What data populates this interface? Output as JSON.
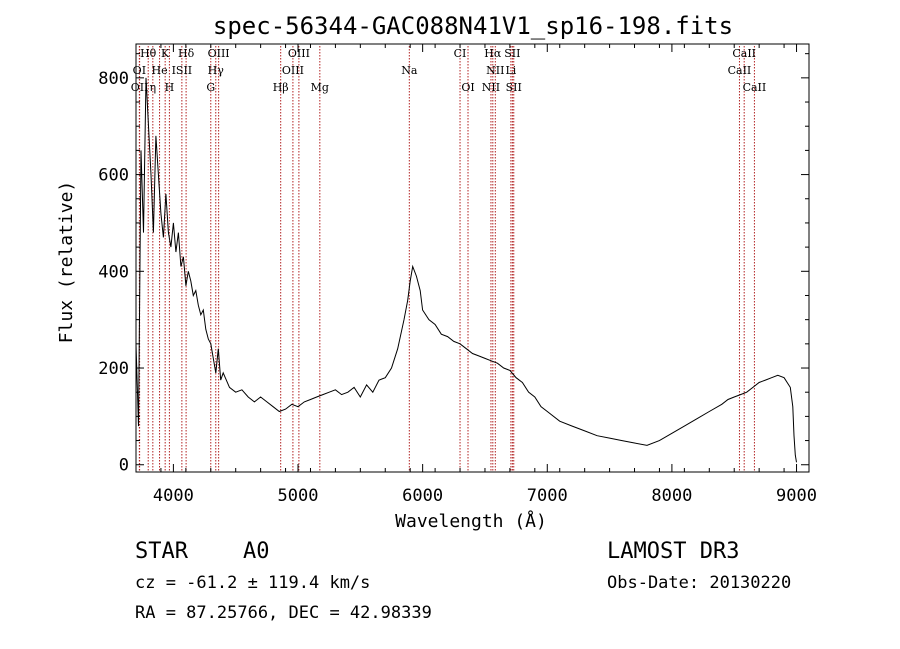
{
  "chart_data": {
    "type": "line",
    "title": "spec-56344-GAC088N41V1_sp16-198.fits",
    "xlabel": "Wavelength (Å)",
    "ylabel": "Flux (relative)",
    "xlim": [
      3700,
      9100
    ],
    "ylim": [
      -15,
      870
    ],
    "xticks": [
      4000,
      5000,
      6000,
      7000,
      8000,
      9000
    ],
    "yticks": [
      0,
      200,
      400,
      600,
      800
    ],
    "line_color": "#000000",
    "marker_color": "#b22222",
    "spectrum": {
      "name": "flux",
      "x": [
        3700,
        3720,
        3740,
        3760,
        3780,
        3800,
        3820,
        3840,
        3860,
        3880,
        3900,
        3920,
        3940,
        3960,
        3980,
        4000,
        4020,
        4040,
        4060,
        4080,
        4100,
        4120,
        4140,
        4160,
        4180,
        4200,
        4220,
        4240,
        4260,
        4280,
        4300,
        4320,
        4340,
        4360,
        4380,
        4400,
        4450,
        4500,
        4550,
        4600,
        4650,
        4700,
        4750,
        4800,
        4850,
        4900,
        4950,
        5000,
        5050,
        5100,
        5150,
        5200,
        5250,
        5300,
        5350,
        5400,
        5450,
        5500,
        5550,
        5600,
        5650,
        5700,
        5750,
        5800,
        5850,
        5880,
        5900,
        5920,
        5950,
        5980,
        6000,
        6050,
        6100,
        6150,
        6200,
        6250,
        6300,
        6350,
        6400,
        6450,
        6500,
        6550,
        6600,
        6650,
        6700,
        6750,
        6800,
        6850,
        6900,
        6950,
        7000,
        7100,
        7200,
        7300,
        7400,
        7500,
        7600,
        7700,
        7800,
        7900,
        8000,
        8100,
        8200,
        8300,
        8400,
        8450,
        8500,
        8550,
        8600,
        8650,
        8700,
        8750,
        8800,
        8850,
        8900,
        8950,
        8970,
        8980,
        8990,
        9000
      ],
      "y": [
        250,
        80,
        650,
        480,
        800,
        700,
        600,
        480,
        680,
        600,
        520,
        470,
        560,
        480,
        450,
        500,
        440,
        480,
        410,
        430,
        370,
        400,
        380,
        350,
        360,
        330,
        310,
        320,
        280,
        260,
        250,
        220,
        190,
        240,
        175,
        190,
        160,
        150,
        155,
        140,
        130,
        140,
        130,
        120,
        110,
        115,
        125,
        120,
        130,
        135,
        140,
        145,
        150,
        155,
        145,
        150,
        160,
        140,
        165,
        150,
        175,
        180,
        200,
        240,
        300,
        340,
        380,
        410,
        390,
        360,
        320,
        300,
        290,
        270,
        265,
        255,
        250,
        240,
        230,
        225,
        220,
        215,
        210,
        200,
        195,
        180,
        170,
        150,
        140,
        120,
        110,
        90,
        80,
        70,
        60,
        55,
        50,
        45,
        40,
        50,
        65,
        80,
        95,
        110,
        125,
        135,
        140,
        145,
        150,
        160,
        170,
        175,
        180,
        185,
        180,
        160,
        120,
        60,
        20,
        5
      ]
    },
    "lines": [
      {
        "label": "Hθ",
        "wl": 3798,
        "row": 0
      },
      {
        "label": "K",
        "wl": 3934,
        "row": 0
      },
      {
        "label": "Hδ",
        "wl": 4102,
        "row": 0
      },
      {
        "label": "OIII",
        "wl": 4363,
        "row": 0
      },
      {
        "label": "OIII",
        "wl": 5007,
        "row": 0
      },
      {
        "label": "CI",
        "wl": 6300,
        "row": 0
      },
      {
        "label": "Hα",
        "wl": 6563,
        "row": 0
      },
      {
        "label": "SII",
        "wl": 6720,
        "row": 0
      },
      {
        "label": "CaII",
        "wl": 8580,
        "row": 0
      },
      {
        "label": "OI",
        "wl": 3727,
        "row": 1
      },
      {
        "label": "He",
        "wl": 3889,
        "row": 1
      },
      {
        "label": "ISII",
        "wl": 4068,
        "row": 1
      },
      {
        "label": "Hγ",
        "wl": 4340,
        "row": 1
      },
      {
        "label": "OIII",
        "wl": 4959,
        "row": 1
      },
      {
        "label": "Na",
        "wl": 5893,
        "row": 1
      },
      {
        "label": "NII",
        "wl": 6583,
        "row": 1
      },
      {
        "label": "Li",
        "wl": 6708,
        "row": 1
      },
      {
        "label": "CaII",
        "wl": 8542,
        "row": 1
      },
      {
        "label": "OII",
        "wl": 3729,
        "row": 2
      },
      {
        "label": "η",
        "wl": 3835,
        "row": 2
      },
      {
        "label": "H",
        "wl": 3968,
        "row": 2
      },
      {
        "label": "G",
        "wl": 4300,
        "row": 2
      },
      {
        "label": "Hβ",
        "wl": 4861,
        "row": 2
      },
      {
        "label": "Mg",
        "wl": 5175,
        "row": 2
      },
      {
        "label": "OI",
        "wl": 6364,
        "row": 2
      },
      {
        "label": "NII",
        "wl": 6548,
        "row": 2
      },
      {
        "label": "SII",
        "wl": 6731,
        "row": 2
      },
      {
        "label": "CaII",
        "wl": 8662,
        "row": 2
      }
    ]
  },
  "info": {
    "object_class": "STAR",
    "subclass": "A0",
    "survey": "LAMOST DR3",
    "cz": "cz = -61.2 ± 119.4 km/s",
    "obs_date": "Obs-Date: 20130220",
    "coords": "RA =  87.25766, DEC =  42.98339"
  }
}
